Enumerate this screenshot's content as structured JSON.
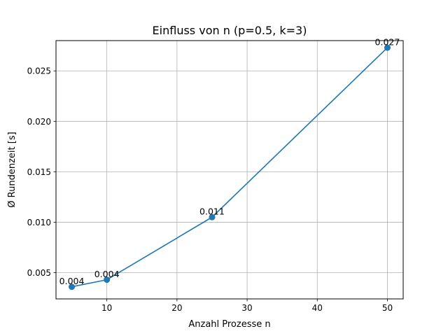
{
  "chart_data": {
    "type": "line",
    "title": "Einfluss von n (p=0.5, k=3)",
    "xlabel": "Anzahl Prozesse n",
    "ylabel": "Ø Rundenzeit [s]",
    "xlim": [
      2.75,
      52.25
    ],
    "ylim": [
      0.0024,
      0.028
    ],
    "x_ticks": [
      10,
      20,
      30,
      40,
      50
    ],
    "y_ticks": [
      0.005,
      0.01,
      0.015,
      0.02,
      0.025
    ],
    "x_tick_labels": [
      "10",
      "20",
      "30",
      "40",
      "50"
    ],
    "y_tick_labels": [
      "0.005",
      "0.010",
      "0.015",
      "0.020",
      "0.025"
    ],
    "grid": true,
    "series": [
      {
        "color": "#1f77b4",
        "x": [
          5,
          10,
          25,
          50
        ],
        "y": [
          0.0036,
          0.0043,
          0.0105,
          0.0273
        ],
        "labels": [
          "0.004",
          "0.004",
          "0.011",
          "0.027"
        ]
      }
    ]
  }
}
